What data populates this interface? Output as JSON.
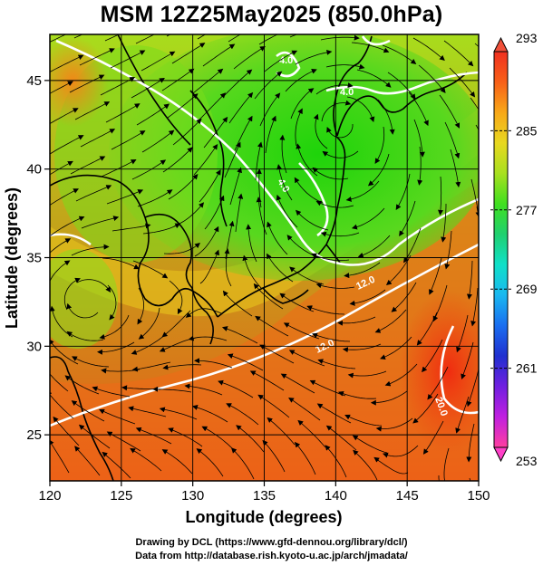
{
  "title": "MSM 12Z25May2025 (850.0hPa)",
  "map": {
    "x_axis": {
      "label": "Longitude (degrees)",
      "range": [
        120,
        150
      ],
      "ticks": [
        120,
        125,
        130,
        135,
        140,
        145,
        150
      ]
    },
    "y_axis": {
      "label": "Latitude  (degrees)",
      "range": [
        22.4,
        47.6
      ],
      "ticks": [
        25,
        30,
        35,
        40,
        45
      ]
    },
    "grid": true,
    "contour_labels": [
      "4.0",
      "4.0",
      "4.0",
      "12.0",
      "12.0",
      "20.0"
    ]
  },
  "colorbar": {
    "ticks": [
      "293",
      "285",
      "277",
      "269",
      "261",
      "253"
    ],
    "min": 253,
    "max": 293,
    "colors": [
      "#ff3ea0",
      "#c020e0",
      "#7020e0",
      "#2030d0",
      "#1a6ef0",
      "#1ab8f0",
      "#10e0c8",
      "#20d070",
      "#40e020",
      "#a8e020",
      "#e8d820",
      "#f8a818",
      "#f86018",
      "#f03020"
    ]
  },
  "credits": {
    "line1": "Drawing by DCL (https://www.gfd-dennou.org/library/dcl/)",
    "line2": "Data from http://database.rish.kyoto-u.ac.jp/arch/jmadata/"
  }
}
